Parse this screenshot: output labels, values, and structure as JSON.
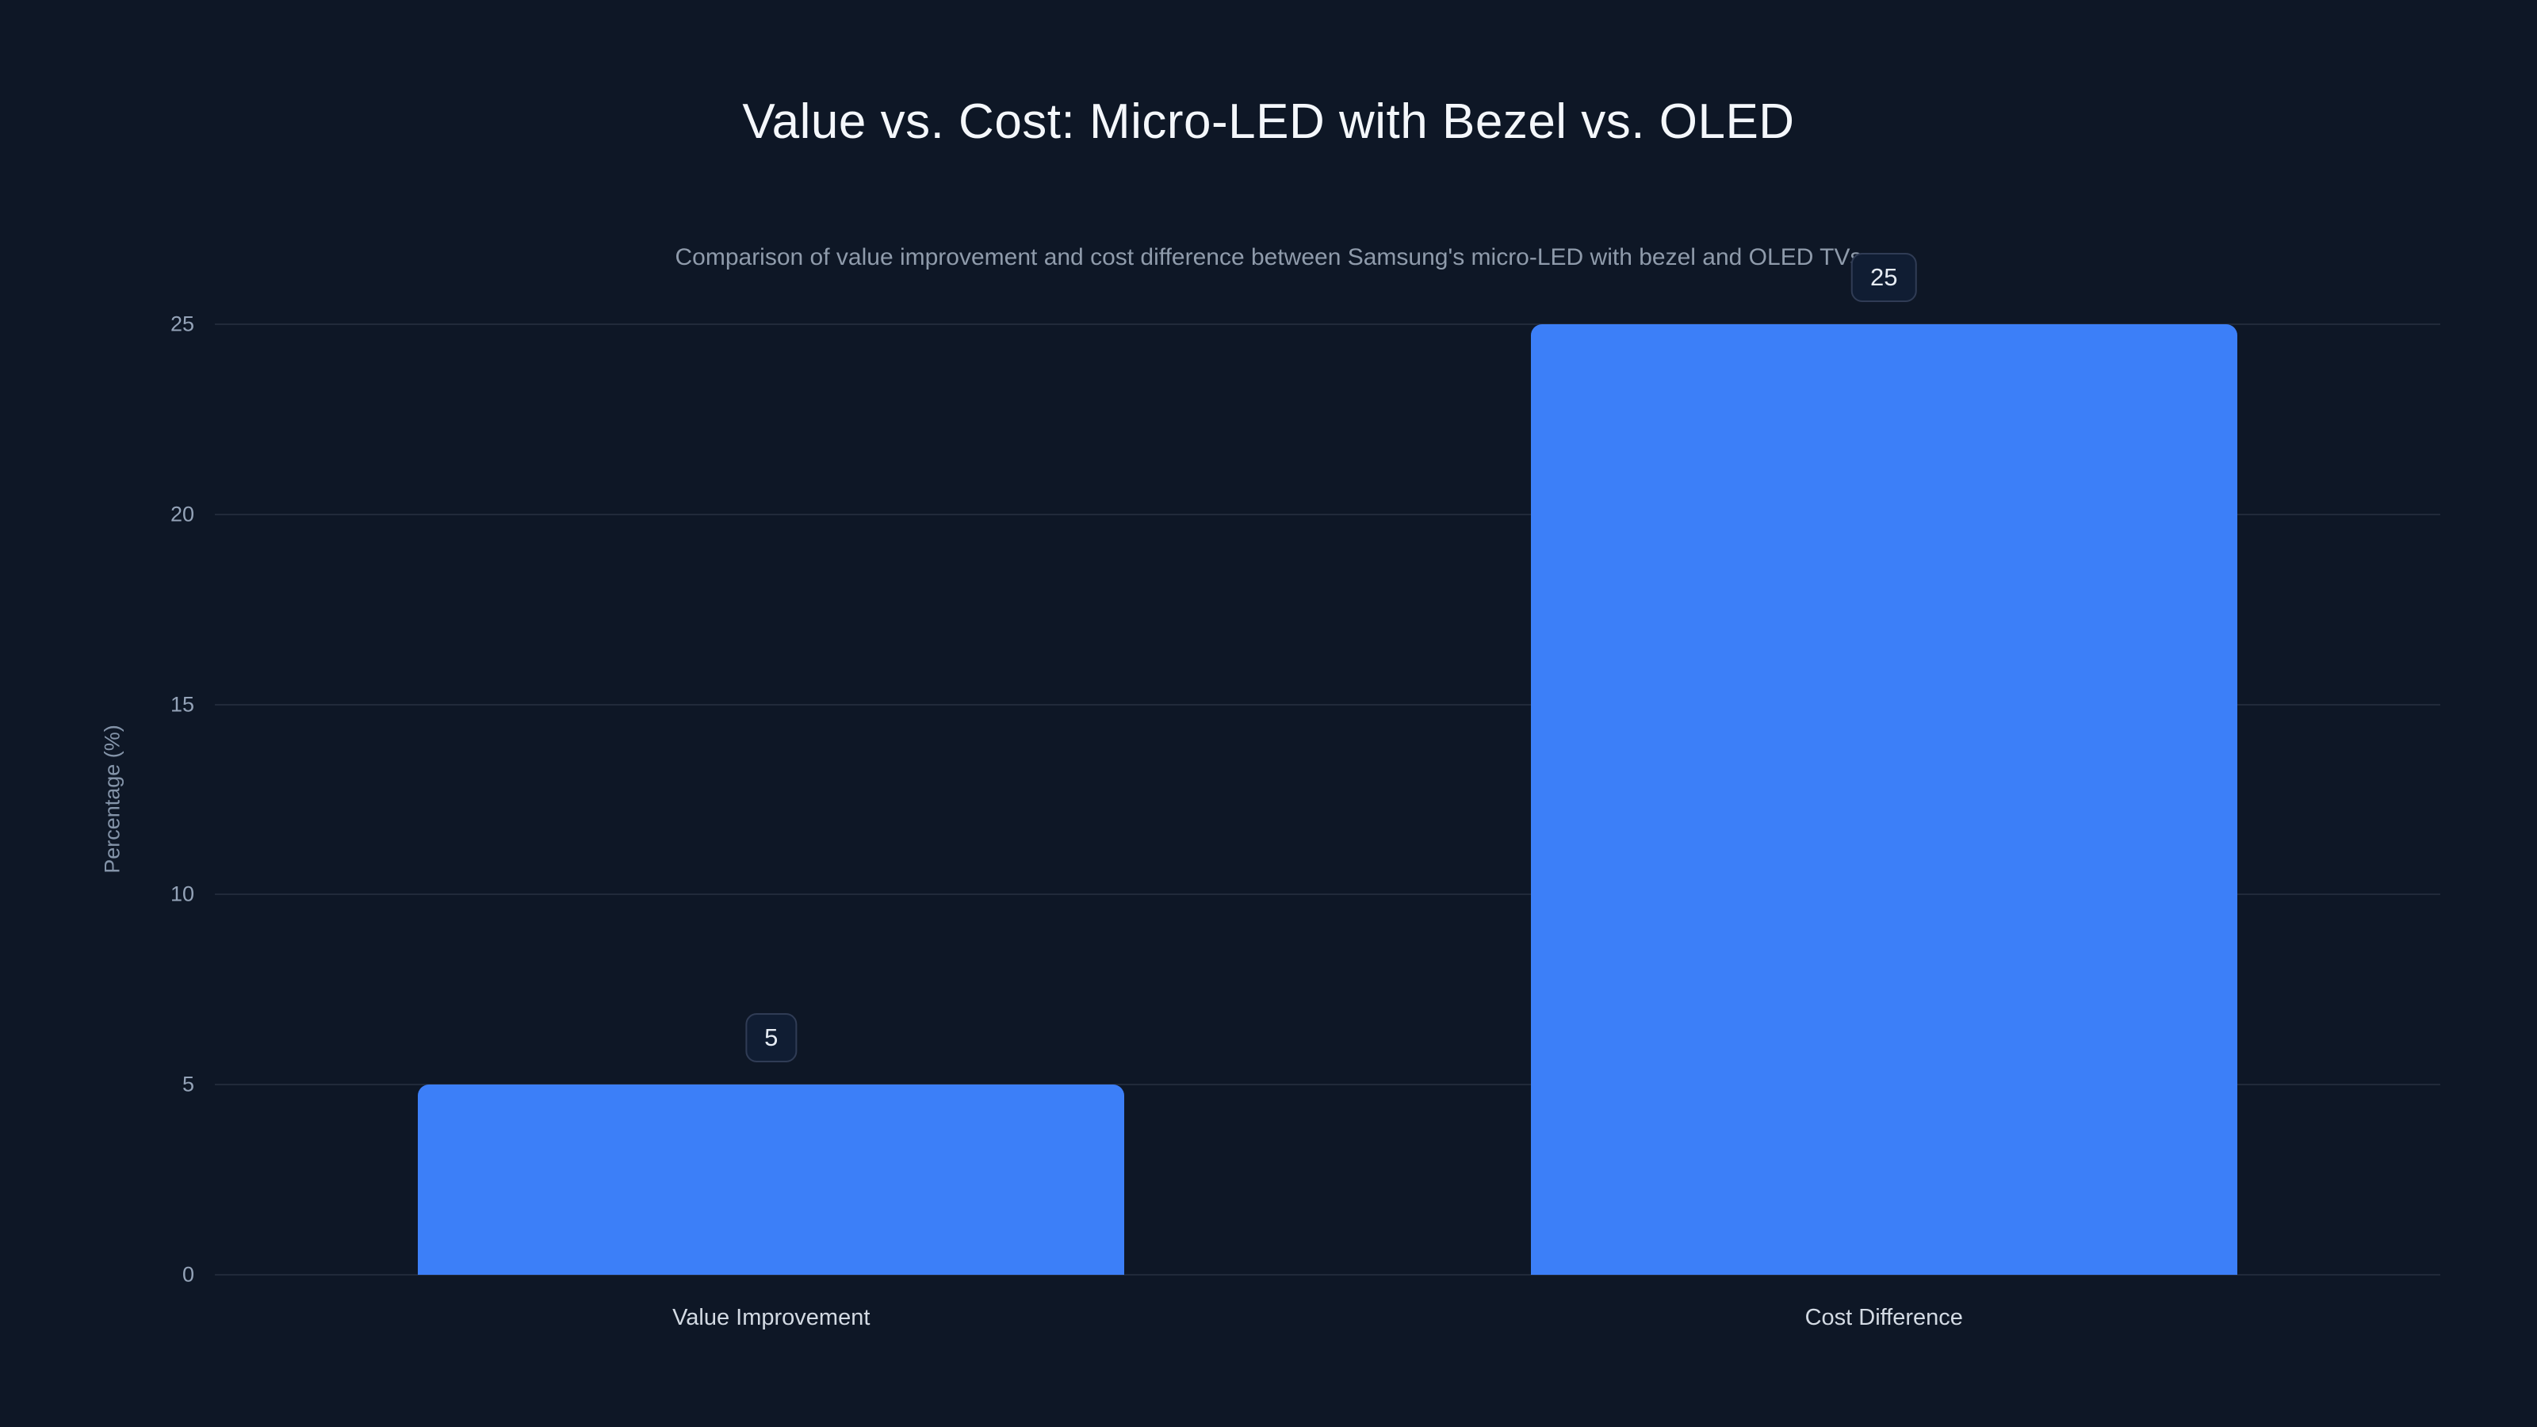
{
  "chart": {
    "title": "Value vs. Cost: Micro-LED with Bezel vs. OLED",
    "subtitle": "Comparison of value improvement and cost difference between Samsung's micro-LED with bezel and OLED TVs"
  },
  "chart_data": {
    "type": "bar",
    "title": "Value vs. Cost: Micro-LED with Bezel vs. OLED",
    "subtitle": "Comparison of value improvement and cost difference between Samsung's micro-LED with bezel and OLED TVs",
    "categories": [
      "Value Improvement",
      "Cost Difference"
    ],
    "values": [
      5,
      25
    ],
    "data_labels": [
      "5",
      "25"
    ],
    "xlabel": "",
    "ylabel": "Percentage (%)",
    "ylim": [
      0,
      25
    ],
    "yticks": [
      0,
      5,
      10,
      15,
      20,
      25
    ],
    "grid": true,
    "legend": "none",
    "bar_color": "#3C7FF8",
    "background": "#0E1726",
    "grid_color": "rgba(148,163,184,0.14)",
    "label_box_bg": "#101D33",
    "label_box_border": "#303C55"
  }
}
